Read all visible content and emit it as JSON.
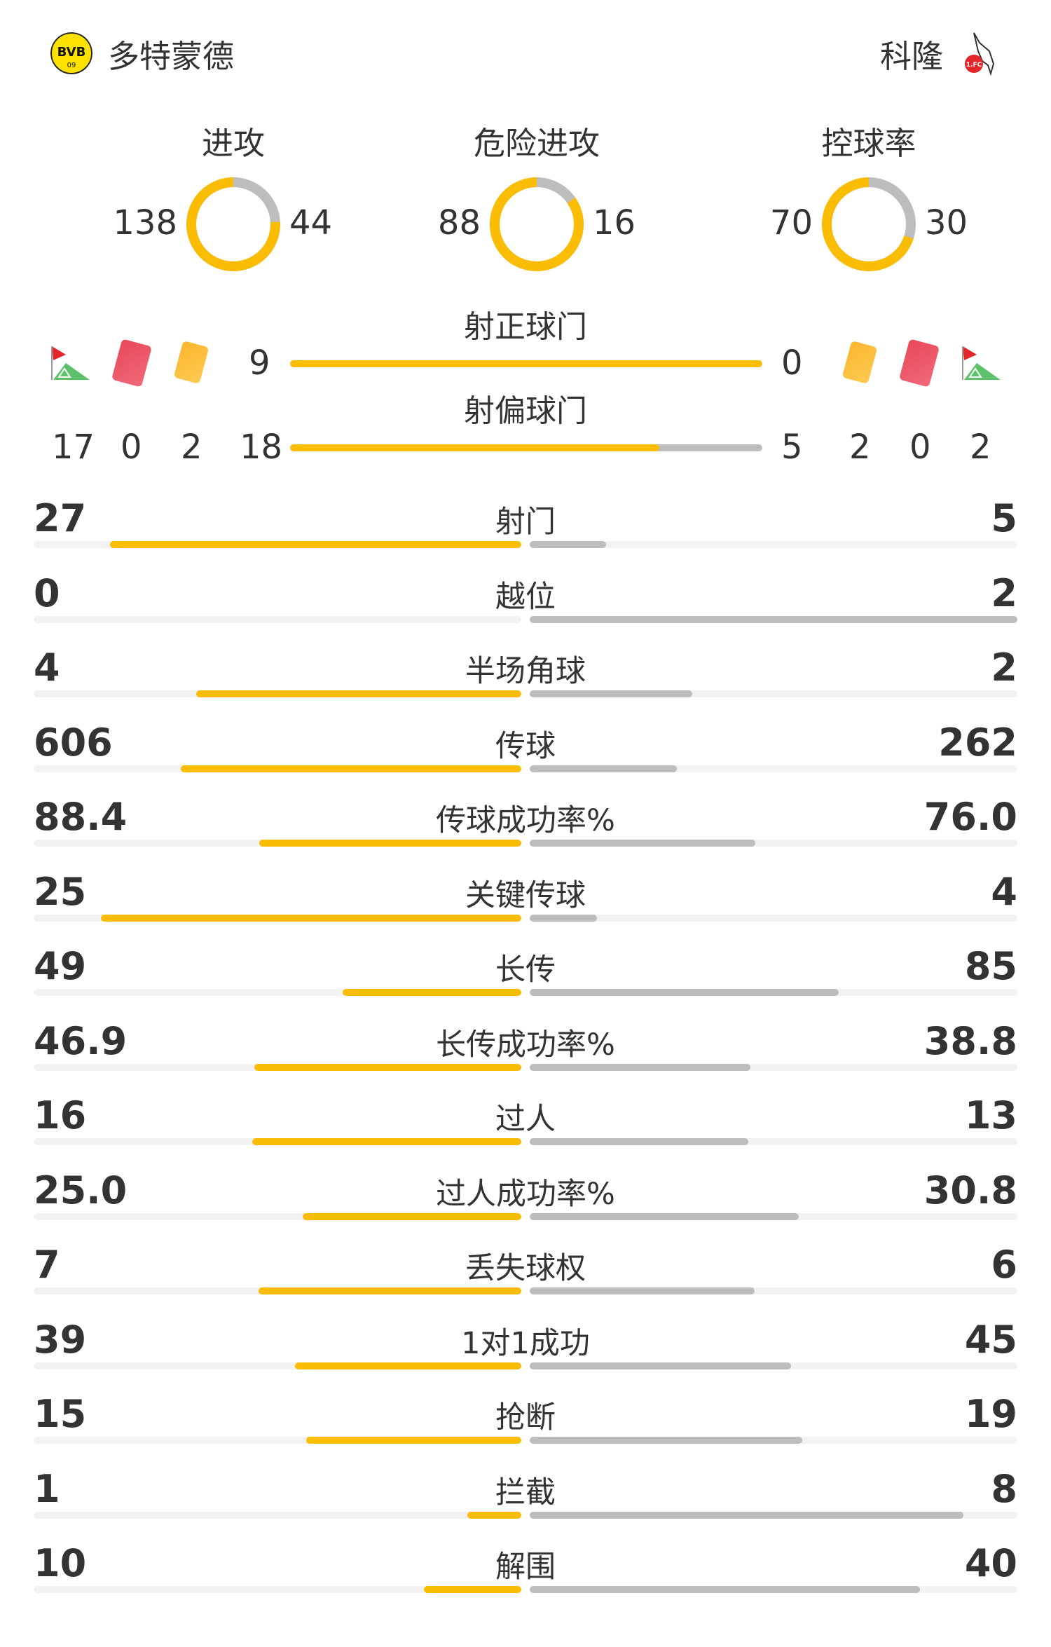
{
  "home": {
    "name": "多特蒙德",
    "logo": "bvb-logo",
    "color": "#fbbc04"
  },
  "away": {
    "name": "科隆",
    "logo": "koln-logo",
    "color": "#bdbdbd"
  },
  "donuts": [
    {
      "label": "进攻",
      "home": 138,
      "away": 44
    },
    {
      "label": "危险进攻",
      "home": 88,
      "away": 16
    },
    {
      "label": "控球率",
      "home": 70,
      "away": 30
    }
  ],
  "shots_on": {
    "label": "射正球门",
    "home": 9,
    "away": 0
  },
  "shots_off": {
    "label": "射偏球门",
    "home": 18,
    "away": 5
  },
  "home_counts": {
    "corners": 17,
    "red_cards": 0,
    "yellow_cards": 2
  },
  "away_counts": {
    "corners": 2,
    "red_cards": 0,
    "yellow_cards": 2
  },
  "icons": {
    "corner": "corner-flag-icon",
    "red": "red-card-icon",
    "yellow": "yellow-card-icon"
  },
  "stats": [
    {
      "label": "射门",
      "home": "27",
      "away": "5"
    },
    {
      "label": "越位",
      "home": "0",
      "away": "2"
    },
    {
      "label": "半场角球",
      "home": "4",
      "away": "2"
    },
    {
      "label": "传球",
      "home": "606",
      "away": "262"
    },
    {
      "label": "传球成功率%",
      "home": "88.4",
      "away": "76.0"
    },
    {
      "label": "关键传球",
      "home": "25",
      "away": "4"
    },
    {
      "label": "长传",
      "home": "49",
      "away": "85"
    },
    {
      "label": "长传成功率%",
      "home": "46.9",
      "away": "38.8"
    },
    {
      "label": "过人",
      "home": "16",
      "away": "13"
    },
    {
      "label": "过人成功率%",
      "home": "25.0",
      "away": "30.8"
    },
    {
      "label": "丢失球权",
      "home": "7",
      "away": "6"
    },
    {
      "label": "1对1成功",
      "home": "39",
      "away": "45"
    },
    {
      "label": "抢断",
      "home": "15",
      "away": "19"
    },
    {
      "label": "拦截",
      "home": "1",
      "away": "8"
    },
    {
      "label": "解围",
      "home": "10",
      "away": "40"
    }
  ]
}
